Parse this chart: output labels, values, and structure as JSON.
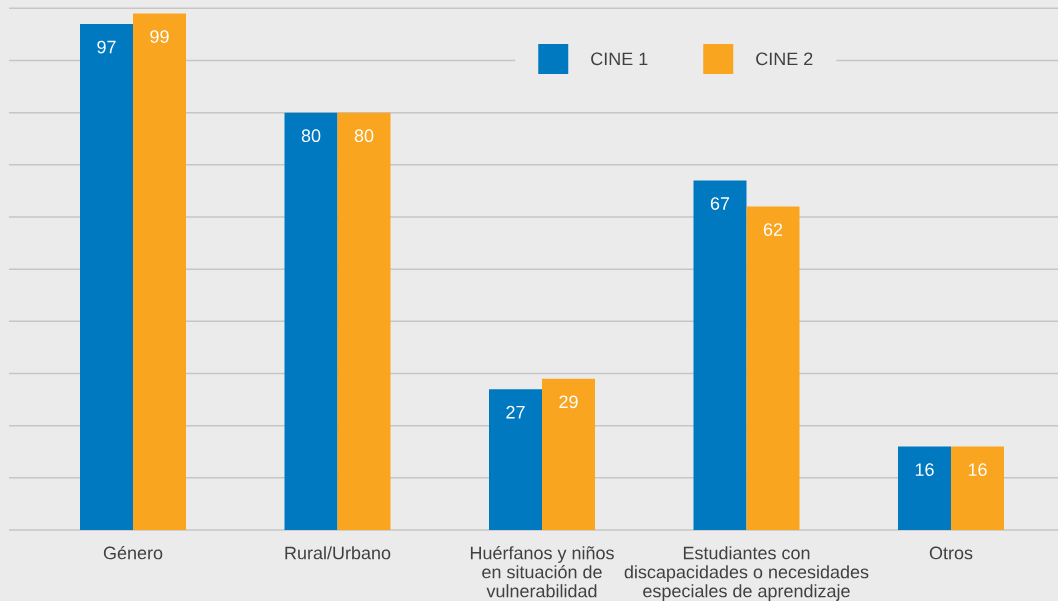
{
  "chart_data": {
    "type": "bar",
    "categories": [
      "Género",
      "Rural/Urbano",
      "Huérfanos y niños en situación de vulnerabilidad",
      "Estudiantes con discapacidades o necesidades especiales de aprendizaje",
      "Otros"
    ],
    "series": [
      {
        "name": "CINE 1",
        "color": "#0079c1",
        "values": [
          97,
          80,
          27,
          67,
          16
        ]
      },
      {
        "name": "CINE 2",
        "color": "#f9a51f",
        "values": [
          99,
          80,
          29,
          62,
          16
        ]
      }
    ],
    "ylim": [
      0,
      100
    ],
    "yticks": [
      {
        "value": 0,
        "label": null
      },
      {
        "value": 10,
        "label": null
      },
      {
        "value": 20,
        "label": null
      },
      {
        "value": 30,
        "label": null
      },
      {
        "value": 40,
        "label": null
      },
      {
        "value": 50,
        "label": null
      },
      {
        "value": 60,
        "label": null
      },
      {
        "value": 70,
        "label": null
      },
      {
        "value": 80,
        "label": null
      },
      {
        "value": 90,
        "label": null
      },
      {
        "value": 100,
        "label": null
      }
    ],
    "grid": "y",
    "legend": "top",
    "data_labels": true,
    "tick_labels": "x"
  }
}
